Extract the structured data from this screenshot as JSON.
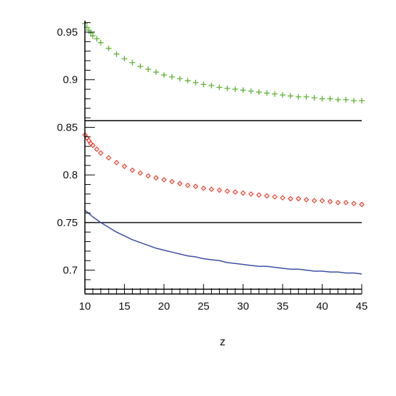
{
  "chart_data": {
    "type": "line",
    "title": "",
    "xlabel": "z",
    "ylabel": "",
    "xlim": [
      10,
      45
    ],
    "ylim": [
      0.675,
      0.962
    ],
    "grid": false,
    "x_ticks": [
      10,
      15,
      20,
      25,
      30,
      35,
      40,
      45
    ],
    "x_tick_labels": [
      "10",
      "15",
      "20",
      "25",
      "30",
      "35",
      "40",
      "45"
    ],
    "y_ticks": [
      0.7,
      0.75,
      0.8,
      0.85,
      0.9,
      0.95
    ],
    "y_tick_labels": [
      "0.7",
      "0.75",
      "0.8",
      "0.85",
      "0.9",
      "0.95"
    ],
    "x_minor_step": 1,
    "y_minor_step": 0.01,
    "reference_lines": [
      0.68,
      0.75,
      0.857
    ],
    "series": [
      {
        "marker": "plus",
        "color": "#5fb336",
        "x": [
          10,
          10.25,
          10.5,
          10.75,
          11,
          11.5,
          12,
          13,
          14,
          15,
          16,
          17,
          18,
          19,
          20,
          21,
          22,
          23,
          24,
          25,
          26,
          27,
          28,
          29,
          30,
          31,
          32,
          33,
          34,
          35,
          36,
          37,
          38,
          39,
          40,
          41,
          42,
          43,
          44,
          45
        ],
        "y": [
          0.959,
          0.955,
          0.952,
          0.949,
          0.946,
          0.943,
          0.939,
          0.933,
          0.927,
          0.922,
          0.918,
          0.914,
          0.911,
          0.908,
          0.905,
          0.903,
          0.901,
          0.899,
          0.897,
          0.895,
          0.894,
          0.892,
          0.891,
          0.89,
          0.889,
          0.888,
          0.887,
          0.886,
          0.885,
          0.884,
          0.883,
          0.882,
          0.882,
          0.881,
          0.88,
          0.88,
          0.879,
          0.879,
          0.878,
          0.878
        ]
      },
      {
        "marker": "diamond",
        "color": "#e8321e",
        "x": [
          10,
          10.25,
          10.5,
          10.75,
          11,
          11.5,
          12,
          13,
          14,
          15,
          16,
          17,
          18,
          19,
          20,
          21,
          22,
          23,
          24,
          25,
          26,
          27,
          28,
          29,
          30,
          31,
          32,
          33,
          34,
          35,
          36,
          37,
          38,
          39,
          40,
          41,
          42,
          43,
          44,
          45
        ],
        "y": [
          0.842,
          0.839,
          0.836,
          0.833,
          0.831,
          0.827,
          0.823,
          0.818,
          0.813,
          0.809,
          0.805,
          0.802,
          0.799,
          0.797,
          0.795,
          0.793,
          0.791,
          0.789,
          0.788,
          0.786,
          0.785,
          0.784,
          0.783,
          0.782,
          0.781,
          0.78,
          0.779,
          0.778,
          0.777,
          0.776,
          0.775,
          0.775,
          0.774,
          0.773,
          0.773,
          0.772,
          0.771,
          0.771,
          0.77,
          0.769
        ]
      },
      {
        "marker": "none",
        "color": "#3a4fa3",
        "x": [
          10,
          11,
          12,
          13,
          14,
          15,
          16,
          17,
          18,
          19,
          20,
          21,
          22,
          23,
          24,
          25,
          26,
          27,
          28,
          29,
          30,
          31,
          32,
          33,
          34,
          35,
          36,
          37,
          38,
          39,
          40,
          41,
          42,
          43,
          44,
          45
        ],
        "y": [
          0.763,
          0.756,
          0.75,
          0.745,
          0.74,
          0.736,
          0.732,
          0.729,
          0.726,
          0.723,
          0.721,
          0.719,
          0.717,
          0.715,
          0.714,
          0.712,
          0.711,
          0.71,
          0.708,
          0.707,
          0.706,
          0.705,
          0.704,
          0.704,
          0.703,
          0.702,
          0.701,
          0.701,
          0.7,
          0.699,
          0.699,
          0.698,
          0.698,
          0.697,
          0.697,
          0.696
        ]
      }
    ]
  }
}
